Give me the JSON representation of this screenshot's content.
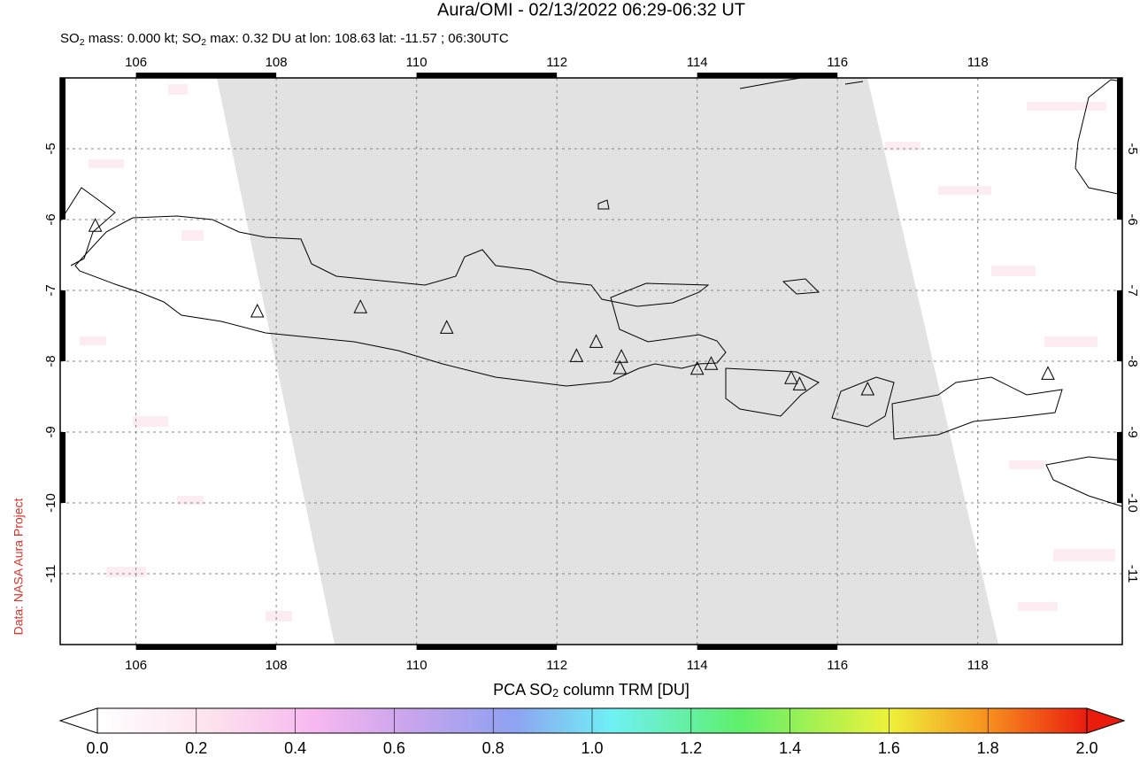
{
  "chart_data": {
    "type": "map",
    "title": "Aura/OMI - 02/13/2022 06:29-06:32 UT",
    "subtitle_parts": [
      "SO",
      "2",
      " mass: 0.000 kt; SO",
      "2",
      " max: 0.32 DU at lon: 108.63 lat: -11.57 ; 06:30UTC"
    ],
    "side_note": "Data: NASA Aura Project",
    "xlim": [
      104.92,
      120.06
    ],
    "ylim": [
      -12,
      -4
    ],
    "xticks": [
      106,
      108,
      110,
      112,
      114,
      116,
      118
    ],
    "yticks": [
      -5,
      -6,
      -7,
      -8,
      -9,
      -10,
      -11
    ],
    "grid": true,
    "markers": {
      "lon": [
        105.42,
        107.73,
        109.2,
        110.43,
        112.28,
        112.56,
        112.92,
        112.9,
        114.0,
        114.2,
        115.34,
        115.46,
        116.43,
        119.0
      ],
      "lat": [
        -6.09,
        -7.3,
        -7.24,
        -7.53,
        -7.93,
        -7.73,
        -7.94,
        -8.1,
        -8.11,
        -8.04,
        -8.24,
        -8.33,
        -8.4,
        -8.18
      ]
    },
    "colorbar": {
      "label_parts": [
        "PCA SO",
        "2",
        " column TRM [DU]"
      ],
      "lim": [
        0,
        2
      ],
      "ticks": [
        {
          "value": 0,
          "label": "0.0"
        },
        0.2,
        0.4,
        0.6,
        0.8,
        {
          "value": 1,
          "label": "1.0"
        },
        1.2,
        1.4,
        1.6,
        1.8,
        {
          "value": 2,
          "label": "2.0"
        }
      ]
    }
  }
}
